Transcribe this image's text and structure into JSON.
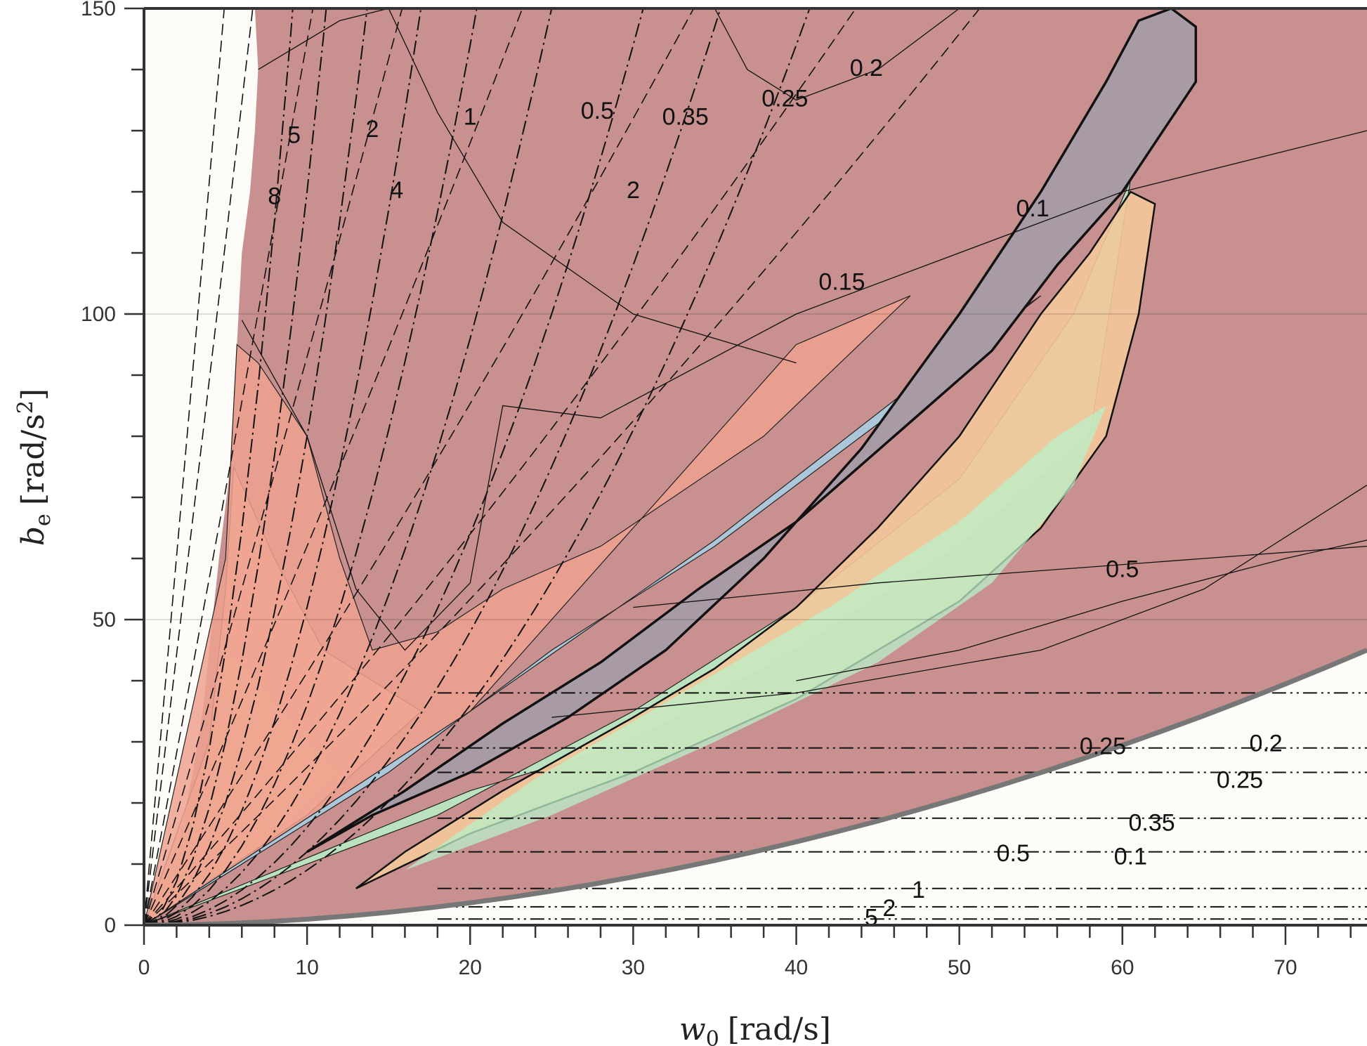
{
  "chart_data": {
    "type": "contour",
    "x_axis": {
      "label_main": "w",
      "label_sub": "0",
      "label_unit": "[rad/s]",
      "range": [
        0,
        75
      ],
      "ticks": [
        0,
        10,
        20,
        30,
        40,
        50,
        60,
        70
      ]
    },
    "y_axis": {
      "label_main": "b",
      "label_sub": "e",
      "label_unit": "[rad/s",
      "label_sup": "2",
      "label_close": "]",
      "range": [
        0,
        150
      ],
      "ticks": [
        0,
        50,
        100,
        150
      ]
    },
    "grid": "horizontal",
    "colors": {
      "background_region": "#fdfcf8",
      "saturated_region": "#c8918f",
      "stable_core": "#a99ba5",
      "contour_palette": [
        "#c7ef9f",
        "#f3e9a1",
        "#f8c49a",
        "#eea191",
        "#a7d0e6",
        "#a7b4f0",
        "#b9f0c8"
      ],
      "frame": "#333333",
      "boundary": "#777777"
    },
    "contour_labels": [
      {
        "text": "8",
        "x": 8.0,
        "y": 119
      },
      {
        "text": "5",
        "x": 9.2,
        "y": 129
      },
      {
        "text": "2",
        "x": 14.0,
        "y": 130
      },
      {
        "text": "4",
        "x": 15.5,
        "y": 120
      },
      {
        "text": "1",
        "x": 20.0,
        "y": 132
      },
      {
        "text": "0.5",
        "x": 27.8,
        "y": 133
      },
      {
        "text": "2",
        "x": 30.0,
        "y": 120
      },
      {
        "text": "0.35",
        "x": 33.2,
        "y": 132
      },
      {
        "text": "0.25",
        "x": 39.3,
        "y": 135
      },
      {
        "text": "0.2",
        "x": 44.3,
        "y": 140
      },
      {
        "text": "0.15",
        "x": 42.8,
        "y": 105
      },
      {
        "text": "0.1",
        "x": 54.5,
        "y": 117
      },
      {
        "text": "0.5",
        "x": 60.0,
        "y": 58
      },
      {
        "text": "0.25",
        "x": 58.8,
        "y": 29
      },
      {
        "text": "0.2",
        "x": 68.8,
        "y": 29.5
      },
      {
        "text": "0.25",
        "x": 67.2,
        "y": 23.5
      },
      {
        "text": "0.35",
        "x": 61.8,
        "y": 16.5
      },
      {
        "text": "0.5",
        "x": 53.3,
        "y": 11.5
      },
      {
        "text": "0.1",
        "x": 60.5,
        "y": 11
      },
      {
        "text": "1",
        "x": 47.5,
        "y": 5.5
      },
      {
        "text": "2",
        "x": 45.7,
        "y": 2.5
      },
      {
        "text": "5",
        "x": 44.6,
        "y": 1.0
      }
    ]
  }
}
